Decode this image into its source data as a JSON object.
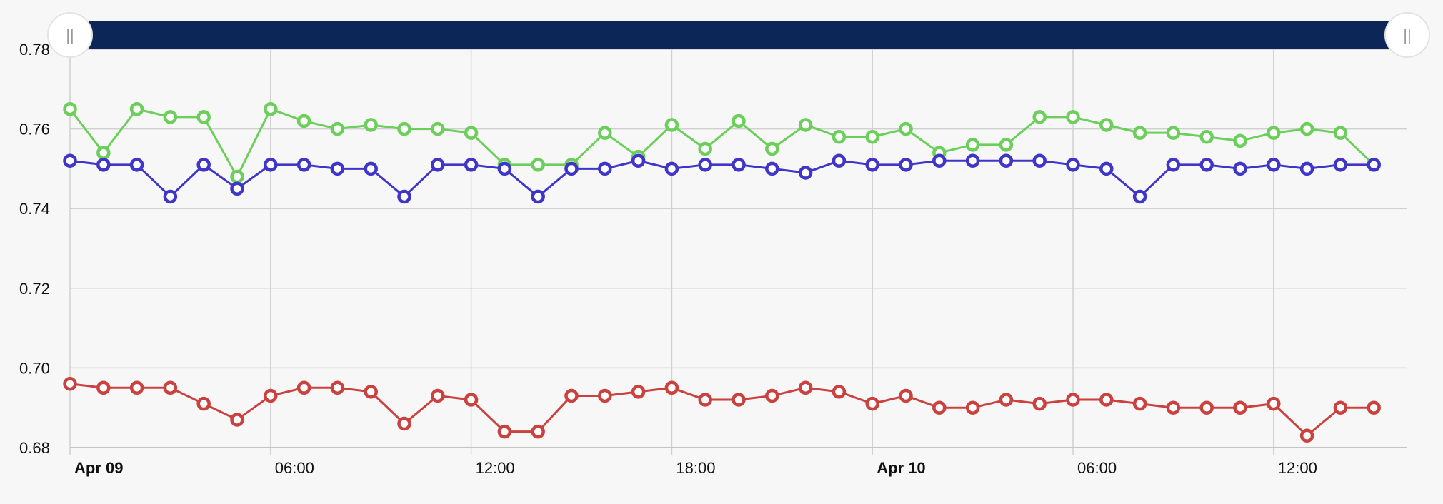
{
  "colors": {
    "background": "#f7f7f7",
    "navigator_bar": "#0c2657",
    "grid": "#d0d0d0"
  },
  "navigator": {
    "left_handle_icon": "drag-handle-icon",
    "right_handle_icon": "drag-handle-icon",
    "handle_glyph": "||"
  },
  "chart_data": {
    "type": "line",
    "x_unit": "hours",
    "x": [
      0,
      1,
      2,
      3,
      4,
      5,
      6,
      7,
      8,
      9,
      10,
      11,
      12,
      13,
      14,
      15,
      16,
      17,
      18,
      19,
      20,
      21,
      22,
      23,
      24,
      25,
      26,
      27,
      28,
      29,
      30,
      31,
      32,
      33,
      34,
      35,
      36,
      37,
      38,
      39
    ],
    "xlim": [
      0,
      40
    ],
    "ylim": [
      0.68,
      0.78
    ],
    "y_ticks": [
      "0.68",
      "0.70",
      "0.72",
      "0.74",
      "0.76",
      "0.78"
    ],
    "x_ticks": [
      {
        "x": 0,
        "label": "Apr 09",
        "bold": true
      },
      {
        "x": 6,
        "label": "06:00",
        "bold": false
      },
      {
        "x": 12,
        "label": "12:00",
        "bold": false
      },
      {
        "x": 18,
        "label": "18:00",
        "bold": false
      },
      {
        "x": 24,
        "label": "Apr 10",
        "bold": true
      },
      {
        "x": 30,
        "label": "06:00",
        "bold": false
      },
      {
        "x": 36,
        "label": "12:00",
        "bold": false
      }
    ],
    "grid": true,
    "legend": "none",
    "series": [
      {
        "color": "#6ccf5b",
        "values": [
          0.765,
          0.754,
          0.765,
          0.763,
          0.763,
          0.748,
          0.765,
          0.762,
          0.76,
          0.761,
          0.76,
          0.76,
          0.759,
          0.751,
          0.751,
          0.751,
          0.759,
          0.753,
          0.761,
          0.755,
          0.762,
          0.755,
          0.761,
          0.758,
          0.758,
          0.76,
          0.754,
          0.756,
          0.756,
          0.763,
          0.763,
          0.761,
          0.759,
          0.759,
          0.758,
          0.757,
          0.759,
          0.76,
          0.759,
          0.751
        ]
      },
      {
        "color": "#3f36c8",
        "values": [
          0.752,
          0.751,
          0.751,
          0.743,
          0.751,
          0.745,
          0.751,
          0.751,
          0.75,
          0.75,
          0.743,
          0.751,
          0.751,
          0.75,
          0.743,
          0.75,
          0.75,
          0.752,
          0.75,
          0.751,
          0.751,
          0.75,
          0.749,
          0.752,
          0.751,
          0.751,
          0.752,
          0.752,
          0.752,
          0.752,
          0.751,
          0.75,
          0.743,
          0.751,
          0.751,
          0.75,
          0.751,
          0.75,
          0.751,
          0.751
        ]
      },
      {
        "color": "#c9423f",
        "values": [
          0.696,
          0.695,
          0.695,
          0.695,
          0.691,
          0.687,
          0.693,
          0.695,
          0.695,
          0.694,
          0.686,
          0.693,
          0.692,
          0.684,
          0.684,
          0.693,
          0.693,
          0.694,
          0.695,
          0.692,
          0.692,
          0.693,
          0.695,
          0.694,
          0.691,
          0.693,
          0.69,
          0.69,
          0.692,
          0.691,
          0.692,
          0.692,
          0.691,
          0.69,
          0.69,
          0.69,
          0.691,
          0.683,
          0.69,
          0.69
        ]
      }
    ]
  }
}
